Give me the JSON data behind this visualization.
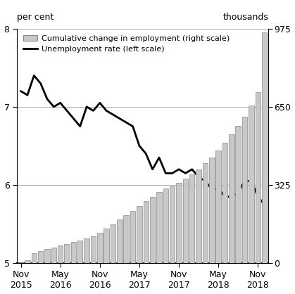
{
  "bar_color": "#c8c8c8",
  "bar_edge_color": "#888888",
  "line_color": "#000000",
  "bg_color": "#ffffff",
  "left_ylabel": "per cent",
  "right_ylabel": "thousands",
  "ylim_left": [
    5,
    8
  ],
  "ylim_right": [
    0,
    975
  ],
  "yticks_left": [
    5,
    6,
    7,
    8
  ],
  "yticks_right": [
    0,
    325,
    650,
    975
  ],
  "x_tick_labels": [
    "Nov\n2015",
    "May\n2016",
    "Nov\n2016",
    "May\n2017",
    "Nov\n2017",
    "May\n2018",
    "Nov\n2018"
  ],
  "legend_bar_label": "Cumulative change in employment (right scale)",
  "legend_line_label": "Unemployment rate (left scale)",
  "employment": [
    3,
    12,
    40,
    50,
    58,
    65,
    72,
    80,
    88,
    95,
    102,
    112,
    125,
    142,
    162,
    180,
    198,
    218,
    238,
    258,
    275,
    295,
    310,
    320,
    335,
    350,
    368,
    390,
    415,
    440,
    468,
    500,
    535,
    570,
    610,
    655,
    710,
    960
  ],
  "unemployment": [
    7.2,
    7.15,
    7.4,
    7.3,
    7.1,
    7.0,
    7.05,
    6.95,
    6.85,
    6.75,
    7.0,
    6.95,
    7.05,
    6.95,
    6.9,
    6.85,
    6.8,
    6.75,
    6.5,
    6.4,
    6.2,
    6.35,
    6.15,
    6.15,
    6.2,
    6.15,
    6.2,
    6.1,
    6.05,
    5.95,
    5.95,
    5.85,
    5.85,
    5.9,
    6.05,
    6.05,
    5.85,
    5.75,
    5.62,
    5.8
  ],
  "n_bars": 38,
  "tick_positions": [
    0,
    6,
    12,
    18,
    24,
    30,
    36
  ]
}
